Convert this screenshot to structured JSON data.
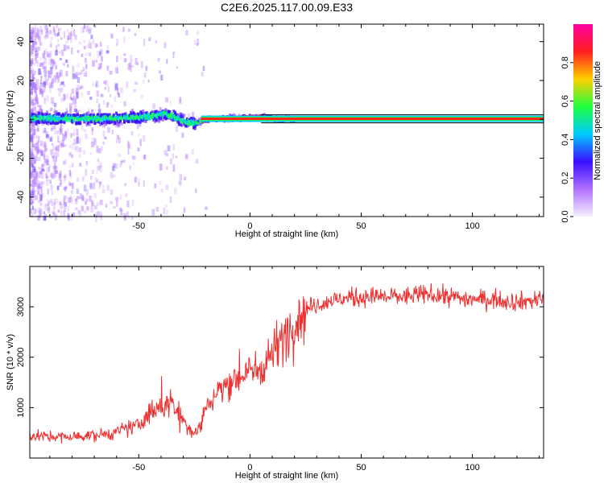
{
  "title": "C2E6.2025.117.00.09.E33",
  "chart_data": [
    {
      "type": "heatmap",
      "xlabel": "Height of straight line (km)",
      "ylabel": "Frequency (Hz)",
      "xlim": [
        -99,
        132
      ],
      "ylim": [
        -50,
        49
      ],
      "xticks": [
        -50,
        0,
        50,
        100
      ],
      "xtick_labels": [
        "-50",
        "0",
        "50",
        "100"
      ],
      "yticks": [
        -40,
        -20,
        0,
        20,
        40
      ],
      "ytick_labels": [
        "-40",
        "-20",
        "0",
        "20",
        "40"
      ],
      "colorbar": {
        "label": "Normalized spectral amplitude",
        "range": [
          0,
          1
        ],
        "ticks": [
          0.0,
          0.2,
          0.4,
          0.6,
          0.8
        ],
        "tick_labels": [
          "0.0",
          "0.2",
          "0.4",
          "0.6",
          "0.8"
        ],
        "colors": [
          "#f4f0ff",
          "#b070ff",
          "#3a10ff",
          "#00ccff",
          "#20ff40",
          "#ffd000",
          "#ff2020",
          "#ff00a0"
        ]
      },
      "ridge": [
        {
          "x": -99,
          "y": 0.5
        },
        {
          "x": -80,
          "y": 0.5
        },
        {
          "x": -60,
          "y": 0.5
        },
        {
          "x": -45,
          "y": 1.5
        },
        {
          "x": -38,
          "y": 3.0
        },
        {
          "x": -30,
          "y": -1.0
        },
        {
          "x": -25,
          "y": -2.0
        },
        {
          "x": -20,
          "y": 0.0
        },
        {
          "x": 5,
          "y": 1.0
        },
        {
          "x": 10,
          "y": 0.3
        },
        {
          "x": 132,
          "y": 0.3
        }
      ],
      "grid": false
    },
    {
      "type": "line",
      "xlabel": "Height of straight line (km)",
      "ylabel": "SNR (10 * v/v)",
      "xlim": [
        -99,
        132
      ],
      "ylim": [
        0,
        3800
      ],
      "xticks": [
        -50,
        0,
        50,
        100
      ],
      "xtick_labels": [
        "-50",
        "0",
        "50",
        "100"
      ],
      "yticks": [
        1000,
        2000,
        3000
      ],
      "ytick_labels": [
        "1000",
        "2000",
        "3000"
      ],
      "color": "#ee3030",
      "series": [
        {
          "x": [
            -99,
            -90,
            -80,
            -70,
            -60,
            -55,
            -50,
            -45,
            -40,
            -35,
            -30,
            -25,
            -22,
            -20,
            -15,
            -10,
            -5,
            0,
            5,
            10,
            15,
            20,
            25,
            30,
            40,
            50,
            60,
            70,
            80,
            90,
            100,
            110,
            120,
            132
          ],
          "values": [
            450,
            420,
            420,
            450,
            500,
            600,
            650,
            900,
            1000,
            1100,
            750,
            500,
            650,
            1000,
            1300,
            1500,
            1600,
            1700,
            1800,
            2100,
            2400,
            2700,
            2950,
            3050,
            3150,
            3200,
            3200,
            3200,
            3250,
            3200,
            3150,
            3150,
            3100,
            3150
          ]
        }
      ],
      "grid": false
    }
  ]
}
